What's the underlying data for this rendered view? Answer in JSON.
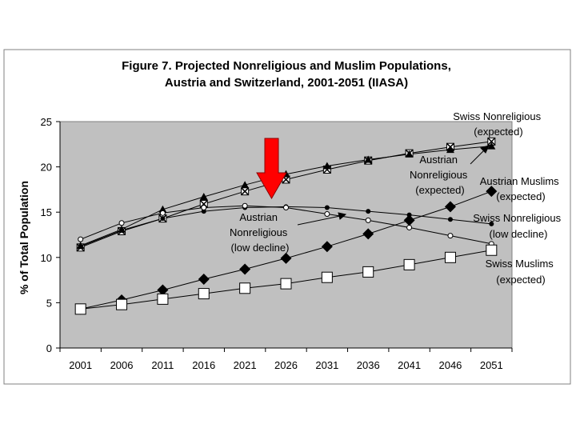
{
  "chart_data": {
    "type": "line",
    "title_lines": [
      "Figure 7. Projected Nonreligious and Muslim Populations,",
      "Austria and Switzerland, 2001-2051 (IIASA)"
    ],
    "ylabel": "% of Total Population",
    "xlabel": "",
    "categories": [
      "2001",
      "2006",
      "2011",
      "2016",
      "2021",
      "2026",
      "2031",
      "2036",
      "2041",
      "2046",
      "2051"
    ],
    "ylim": [
      0,
      25
    ],
    "yticks": [
      0,
      5,
      10,
      15,
      20,
      25
    ],
    "grid": false,
    "plot_background": "#c0c0c0",
    "series": [
      {
        "name": "Swiss Nonreligious (expected)",
        "marker": "x-square",
        "color": "#000000",
        "values": [
          11.1,
          12.9,
          14.3,
          15.9,
          17.3,
          18.6,
          19.7,
          20.7,
          21.5,
          22.2,
          22.8
        ]
      },
      {
        "name": "Austrian Nonreligious (expected)",
        "marker": "triangle",
        "color": "#000000",
        "values": [
          11.3,
          13.1,
          15.3,
          16.7,
          18.0,
          19.2,
          20.1,
          20.8,
          21.4,
          21.9,
          22.3
        ]
      },
      {
        "name": "Austrian Nonreligious (low decline)",
        "marker": "dot",
        "color": "#000000",
        "values": [
          11.2,
          13.0,
          14.3,
          15.1,
          15.5,
          15.6,
          15.5,
          15.1,
          14.7,
          14.2,
          13.7
        ]
      },
      {
        "name": "Swiss Nonreligious (low decline)",
        "marker": "open-circle",
        "color": "#000000",
        "values": [
          12.0,
          13.8,
          14.9,
          15.5,
          15.7,
          15.5,
          14.8,
          14.1,
          13.3,
          12.4,
          11.5
        ]
      },
      {
        "name": "Austrian Muslims (expected)",
        "marker": "diamond",
        "color": "#000000",
        "values": [
          4.3,
          5.3,
          6.4,
          7.6,
          8.7,
          9.9,
          11.2,
          12.6,
          14.1,
          15.6,
          17.3
        ]
      },
      {
        "name": "Swiss Muslims (expected)",
        "marker": "open-square",
        "color": "#000000",
        "values": [
          4.3,
          4.8,
          5.4,
          6.0,
          6.6,
          7.1,
          7.8,
          8.4,
          9.2,
          10.0,
          10.8
        ]
      }
    ],
    "annotations": [
      {
        "id": "swiss-nonrel-exp",
        "lines": [
          "Swiss Nonreligious",
          "(expected)"
        ]
      },
      {
        "id": "austrian-nonrel-exp",
        "lines": [
          "Austrian",
          "Nonreligious",
          "(expected)"
        ]
      },
      {
        "id": "austrian-muslims-exp",
        "lines": [
          "Austrian Muslims",
          "(expected)"
        ]
      },
      {
        "id": "swiss-nonrel-low",
        "lines": [
          "Swiss Nonreligious",
          "(low decline)"
        ]
      },
      {
        "id": "austrian-nonrel-low",
        "lines": [
          "Austrian",
          "Nonreligious",
          "(low decline)"
        ]
      },
      {
        "id": "swiss-muslims-exp",
        "lines": [
          "Swiss Muslims",
          "(expected)"
        ]
      }
    ],
    "highlight_arrow_color": "#ff0000"
  }
}
